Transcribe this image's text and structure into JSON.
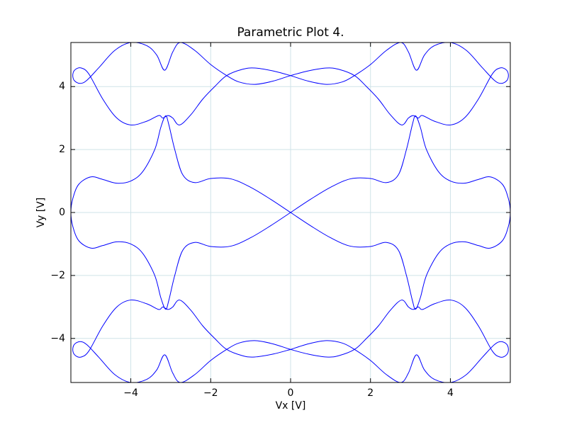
{
  "chart_data": {
    "type": "line",
    "title": "Parametric Plot 4.",
    "xlabel": "Vx [V]",
    "ylabel": "Vy [V]",
    "color": "#0000ff",
    "grid": true,
    "xlim": [
      -5.5,
      5.5
    ],
    "ylim": [
      -5.4,
      5.4
    ],
    "xticks": [
      {
        "value": -4,
        "label": "−4"
      },
      {
        "value": -2,
        "label": "−2"
      },
      0,
      2,
      4
    ],
    "yticks": [
      {
        "value": -4,
        "label": "−4"
      },
      {
        "value": -2,
        "label": "−2"
      },
      0,
      2,
      4
    ],
    "x": [
      0,
      0.5,
      1,
      1.5,
      2,
      2.4,
      2.7,
      2.9,
      3.05,
      3.13,
      3.25,
      3.4,
      3.7,
      4.0,
      4.35,
      4.7,
      5.0,
      5.3,
      5.45,
      5.5,
      5.45,
      5.3,
      5.0,
      4.7,
      4.35,
      4.0,
      3.7,
      3.4,
      3.25,
      3.13,
      3.05,
      2.9,
      2.7,
      2.4,
      2,
      1.5,
      1,
      0.5,
      0,
      -0.5,
      -1,
      -1.5,
      -2,
      -2.4,
      -2.7,
      -2.9,
      -3.05,
      -3.13,
      -3.25,
      -3.4,
      -3.7,
      -4.0,
      -4.35,
      -4.7,
      -5.0,
      -5.3,
      -5.45,
      -5.5,
      -5.45,
      -5.3,
      -5.0,
      -4.7,
      -4.35,
      -4.0,
      -3.7,
      -3.4,
      -3.25,
      -3.13,
      -3.05,
      -2.9,
      -2.7,
      -2.4,
      -2,
      -1.5,
      -1,
      -0.5,
      0,
      null,
      0,
      0.45,
      0.9,
      1.3,
      1.6,
      2.0,
      2.4,
      2.76,
      2.95,
      3.15,
      3.35,
      3.6,
      4.0,
      4.4,
      4.8,
      5.1,
      5.27,
      5.42,
      5.45,
      5.38,
      5.24,
      5.05,
      4.7,
      4.35,
      4.0,
      3.6,
      3.3,
      3.2,
      3.07,
      2.95,
      2.78,
      2.5,
      2.2,
      1.9,
      1.6,
      1.2,
      0.9,
      0.45,
      0,
      -0.45,
      -0.9,
      -1.3,
      -1.6,
      -2.0,
      -2.4,
      -2.76,
      -2.95,
      -3.15,
      -3.35,
      -3.6,
      -4.0,
      -4.4,
      -4.8,
      -5.1,
      -5.27,
      -5.42,
      -5.45,
      -5.38,
      -5.24,
      -5.05,
      -4.7,
      -4.35,
      -4.0,
      -3.6,
      -3.3,
      -3.2,
      -3.07,
      -2.95,
      -2.78,
      -2.5,
      -2.2,
      -1.9,
      -1.6,
      -1.2,
      -0.9,
      -0.45,
      0,
      null,
      0,
      0.45,
      0.9,
      1.3,
      1.6,
      2.0,
      2.4,
      2.76,
      2.95,
      3.15,
      3.35,
      3.6,
      4.0,
      4.4,
      4.8,
      5.1,
      5.27,
      5.42,
      5.45,
      5.38,
      5.24,
      5.05,
      4.7,
      4.35,
      4.0,
      3.6,
      3.3,
      3.2,
      3.07,
      2.95,
      2.78,
      2.5,
      2.2,
      1.9,
      1.6,
      1.2,
      0.9,
      0.45,
      0,
      -0.45,
      -0.9,
      -1.3,
      -1.6,
      -2.0,
      -2.4,
      -2.76,
      -2.95,
      -3.15,
      -3.35,
      -3.6,
      -4.0,
      -4.4,
      -4.8,
      -5.1,
      -5.27,
      -5.42,
      -5.45,
      -5.38,
      -5.24,
      -5.05,
      -4.7,
      -4.35,
      -4.0,
      -3.6,
      -3.3,
      -3.2,
      -3.07,
      -2.95,
      -2.78,
      -2.5,
      -2.2,
      -1.9,
      -1.6,
      -1.2,
      -0.9,
      -0.45,
      0
    ],
    "values": [
      0,
      0.42,
      0.8,
      1.07,
      1.08,
      0.95,
      1.2,
      2.0,
      2.8,
      3.07,
      2.7,
      2.0,
      1.3,
      1.0,
      0.93,
      1.05,
      1.13,
      0.9,
      0.45,
      0,
      -0.45,
      -0.9,
      -1.13,
      -1.05,
      -0.93,
      -1.0,
      -1.3,
      -2.0,
      -2.7,
      -3.07,
      -2.8,
      -2.0,
      -1.2,
      -0.95,
      -1.08,
      -1.07,
      -0.8,
      -0.42,
      0,
      0.42,
      0.8,
      1.07,
      1.08,
      0.95,
      1.2,
      2.0,
      2.8,
      3.07,
      2.7,
      2.0,
      1.3,
      1.0,
      0.93,
      1.05,
      1.13,
      0.9,
      0.45,
      0,
      -0.45,
      -0.9,
      -1.13,
      -1.05,
      -0.93,
      -1.0,
      -1.3,
      -2.0,
      -2.7,
      -3.07,
      -2.8,
      -2.0,
      -1.2,
      -0.95,
      -1.08,
      -1.07,
      -0.8,
      -0.42,
      0,
      null,
      4.35,
      4.17,
      4.07,
      4.15,
      4.35,
      4.7,
      5.15,
      5.4,
      5.1,
      4.52,
      5.0,
      5.3,
      5.4,
      5.15,
      4.6,
      4.2,
      4.1,
      4.2,
      4.4,
      4.55,
      4.59,
      4.4,
      3.6,
      3.0,
      2.78,
      2.9,
      3.08,
      3.0,
      3.08,
      3.0,
      2.78,
      3.1,
      3.6,
      4.0,
      4.35,
      4.55,
      4.59,
      4.5,
      4.35,
      4.17,
      4.07,
      4.15,
      4.35,
      4.7,
      5.15,
      5.4,
      5.1,
      4.52,
      5.0,
      5.3,
      5.4,
      5.15,
      4.6,
      4.2,
      4.1,
      4.2,
      4.4,
      4.55,
      4.59,
      4.4,
      3.6,
      3.0,
      2.78,
      2.9,
      3.08,
      3.0,
      3.08,
      3.0,
      2.78,
      3.1,
      3.6,
      4.0,
      4.35,
      4.55,
      4.59,
      4.5,
      4.35,
      null,
      -4.35,
      -4.17,
      -4.07,
      -4.15,
      -4.35,
      -4.7,
      -5.15,
      -5.4,
      -5.1,
      -4.52,
      -5.0,
      -5.3,
      -5.4,
      -5.15,
      -4.6,
      -4.2,
      -4.1,
      -4.2,
      -4.4,
      -4.55,
      -4.59,
      -4.4,
      -3.6,
      -3.0,
      -2.78,
      -2.9,
      -3.08,
      -3.0,
      -3.08,
      -3.0,
      -2.78,
      -3.1,
      -3.6,
      -4.0,
      -4.35,
      -4.55,
      -4.59,
      -4.5,
      -4.35,
      -4.17,
      -4.07,
      -4.15,
      -4.35,
      -4.7,
      -5.15,
      -5.4,
      -5.1,
      -4.52,
      -5.0,
      -5.3,
      -5.4,
      -5.15,
      -4.6,
      -4.2,
      -4.1,
      -4.2,
      -4.4,
      -4.55,
      -4.59,
      -4.4,
      -3.6,
      -3.0,
      -2.78,
      -2.9,
      -3.08,
      -3.0,
      -3.08,
      -3.0,
      -2.78,
      -3.1,
      -3.6,
      -4.0,
      -4.35,
      -4.55,
      -4.59,
      -4.5,
      -4.35
    ]
  }
}
